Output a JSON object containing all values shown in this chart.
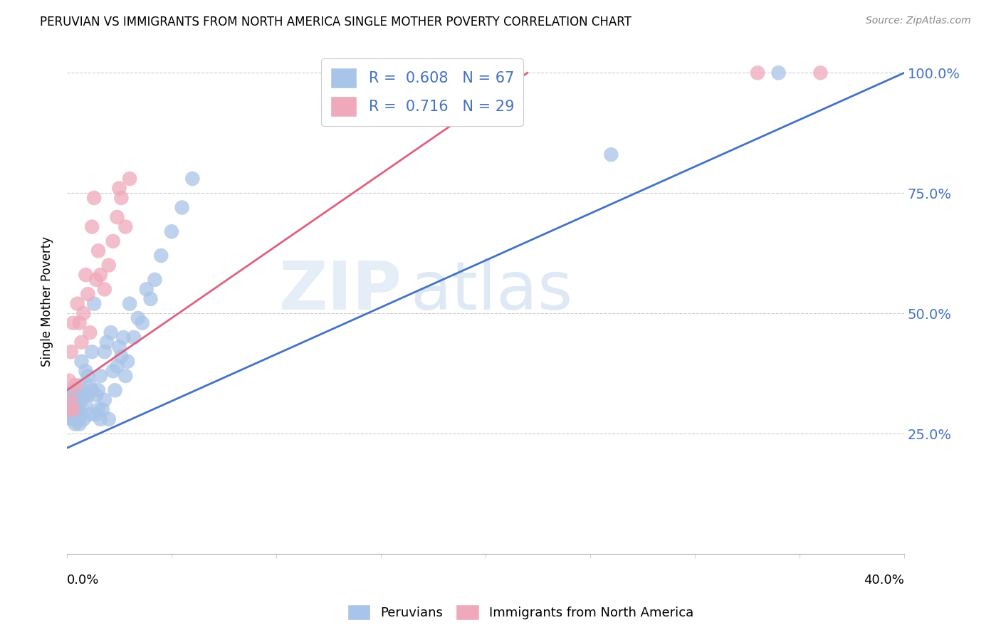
{
  "title": "PERUVIAN VS IMMIGRANTS FROM NORTH AMERICA SINGLE MOTHER POVERTY CORRELATION CHART",
  "source": "Source: ZipAtlas.com",
  "ylabel": "Single Mother Poverty",
  "blue_R": 0.608,
  "blue_N": 67,
  "pink_R": 0.716,
  "pink_N": 29,
  "blue_color": "#a8c4e8",
  "pink_color": "#f0a8bb",
  "blue_line_color": "#4472c4",
  "pink_line_color": "#e06080",
  "right_axis_color": "#4472c4",
  "watermark_color": "#d0dff5",
  "background_color": "#ffffff",
  "xlim": [
    0.0,
    0.4
  ],
  "ylim": [
    0.0,
    1.05
  ],
  "blue_x": [
    0.001,
    0.001,
    0.001,
    0.002,
    0.002,
    0.002,
    0.002,
    0.003,
    0.003,
    0.003,
    0.003,
    0.004,
    0.004,
    0.004,
    0.005,
    0.005,
    0.005,
    0.006,
    0.006,
    0.006,
    0.007,
    0.007,
    0.007,
    0.008,
    0.008,
    0.009,
    0.009,
    0.01,
    0.01,
    0.011,
    0.011,
    0.012,
    0.012,
    0.013,
    0.014,
    0.014,
    0.015,
    0.015,
    0.016,
    0.016,
    0.017,
    0.018,
    0.018,
    0.019,
    0.02,
    0.021,
    0.022,
    0.023,
    0.024,
    0.025,
    0.026,
    0.027,
    0.028,
    0.029,
    0.03,
    0.032,
    0.034,
    0.036,
    0.038,
    0.04,
    0.042,
    0.045,
    0.05,
    0.055,
    0.06,
    0.26,
    0.34
  ],
  "blue_y": [
    0.3,
    0.31,
    0.32,
    0.28,
    0.29,
    0.31,
    0.33,
    0.28,
    0.3,
    0.31,
    0.34,
    0.27,
    0.3,
    0.32,
    0.28,
    0.31,
    0.33,
    0.27,
    0.3,
    0.35,
    0.29,
    0.32,
    0.4,
    0.28,
    0.33,
    0.31,
    0.38,
    0.33,
    0.37,
    0.29,
    0.35,
    0.34,
    0.42,
    0.52,
    0.29,
    0.33,
    0.3,
    0.34,
    0.28,
    0.37,
    0.3,
    0.32,
    0.42,
    0.44,
    0.28,
    0.46,
    0.38,
    0.34,
    0.39,
    0.43,
    0.41,
    0.45,
    0.37,
    0.4,
    0.52,
    0.45,
    0.49,
    0.48,
    0.55,
    0.53,
    0.57,
    0.62,
    0.67,
    0.72,
    0.78,
    0.83,
    1.0
  ],
  "pink_x": [
    0.001,
    0.001,
    0.002,
    0.002,
    0.003,
    0.003,
    0.004,
    0.005,
    0.006,
    0.007,
    0.008,
    0.009,
    0.01,
    0.011,
    0.012,
    0.013,
    0.014,
    0.015,
    0.016,
    0.018,
    0.02,
    0.022,
    0.024,
    0.025,
    0.026,
    0.028,
    0.03,
    0.33,
    0.36
  ],
  "pink_y": [
    0.3,
    0.36,
    0.32,
    0.42,
    0.3,
    0.48,
    0.35,
    0.52,
    0.48,
    0.44,
    0.5,
    0.58,
    0.54,
    0.46,
    0.68,
    0.74,
    0.57,
    0.63,
    0.58,
    0.55,
    0.6,
    0.65,
    0.7,
    0.76,
    0.74,
    0.68,
    0.78,
    1.0,
    1.0
  ],
  "blue_line_x0": 0.0,
  "blue_line_y0": 0.22,
  "blue_line_x1": 0.4,
  "blue_line_y1": 1.0,
  "pink_line_x0": 0.0,
  "pink_line_y0": 0.34,
  "pink_line_x1": 0.22,
  "pink_line_y1": 1.0,
  "yticks": [
    0.25,
    0.5,
    0.75,
    1.0
  ],
  "ytick_labels": [
    "25.0%",
    "50.0%",
    "75.0%",
    "100.0%"
  ],
  "xtick_labels_bottom": [
    "0.0%",
    "40.0%"
  ],
  "legend_label1": "R =  0.608   N = 67",
  "legend_label2": "R =  0.716   N = 29",
  "bottom_legend1": "Peruvians",
  "bottom_legend2": "Immigrants from North America"
}
